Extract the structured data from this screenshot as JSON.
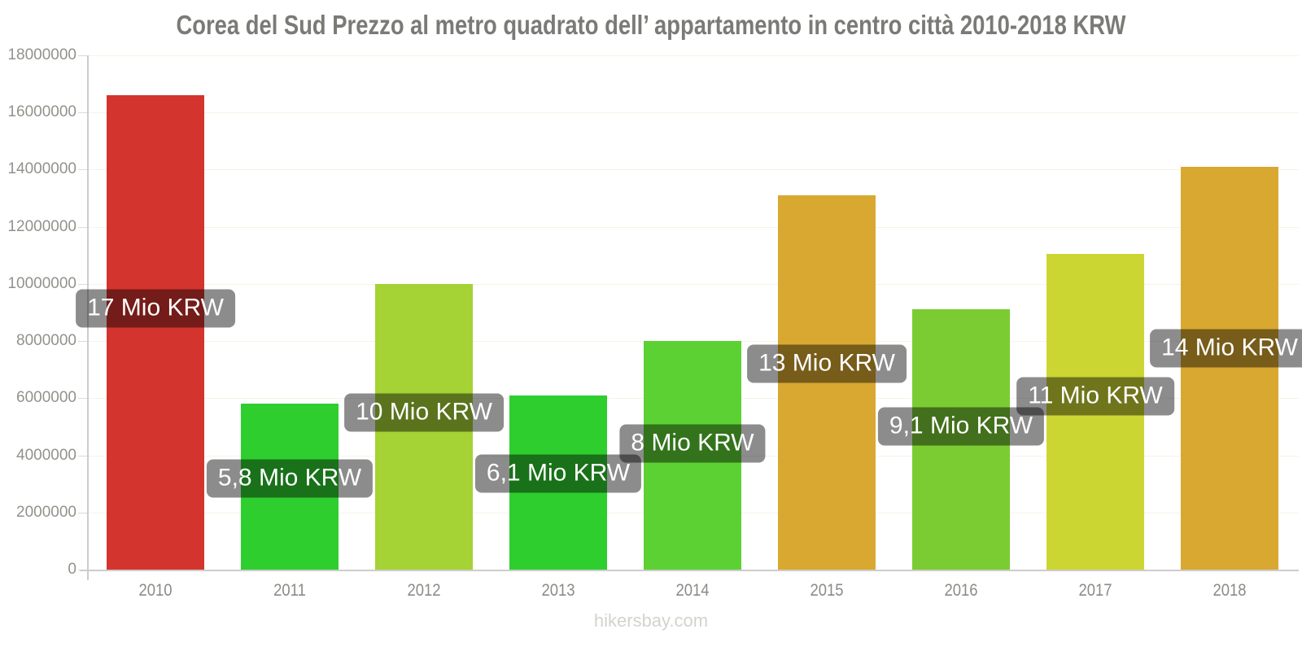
{
  "page": {
    "title": "Corea del Sud Prezzo al metro quadrato dell’ appartamento in centro città 2010-2018 KRW",
    "footer": "hikersbay.com"
  },
  "chart_data": {
    "type": "bar",
    "title": "Corea del Sud Prezzo al metro quadrato dell’ appartamento in centro città 2010-2018 KRW",
    "categories": [
      "2010",
      "2011",
      "2012",
      "2013",
      "2014",
      "2015",
      "2016",
      "2017",
      "2018"
    ],
    "values": [
      16600000,
      5800000,
      10000000,
      6100000,
      8000000,
      13100000,
      9100000,
      11050000,
      14100000
    ],
    "bar_labels": [
      "17 Mio KRW",
      "5,8 Mio KRW",
      "10 Mio KRW",
      "6,1 Mio KRW",
      "8 Mio KRW",
      "13 Mio KRW",
      "9,1 Mio KRW",
      "11 Mio KRW",
      "14 Mio KRW"
    ],
    "bar_colors": [
      "#d4342e",
      "#2fce2f",
      "#a5d234",
      "#2fce2f",
      "#5cd133",
      "#d9a831",
      "#7bcc33",
      "#ccd633",
      "#d9a831"
    ],
    "xlabel": "",
    "ylabel": "",
    "ylim": [
      0,
      18000000
    ],
    "ytick_step": 2000000,
    "yticks": [
      "0",
      "2000000",
      "4000000",
      "6000000",
      "8000000",
      "10000000",
      "12000000",
      "14000000",
      "16000000",
      "18000000"
    ],
    "grid": true,
    "legend": false,
    "currency_unit": "KRW"
  },
  "style": {
    "title_color": "#7a7a77",
    "axis_color": "#cccccc",
    "grid_color": "#f6f3e6",
    "y_tick_label_color": "#92928c",
    "x_tick_label_color": "#8b8b86",
    "tooltip_bg": "rgba(0,0,0,0.45)",
    "tooltip_text_color": "#ffffff",
    "footer_color": "#d3d3cd"
  }
}
